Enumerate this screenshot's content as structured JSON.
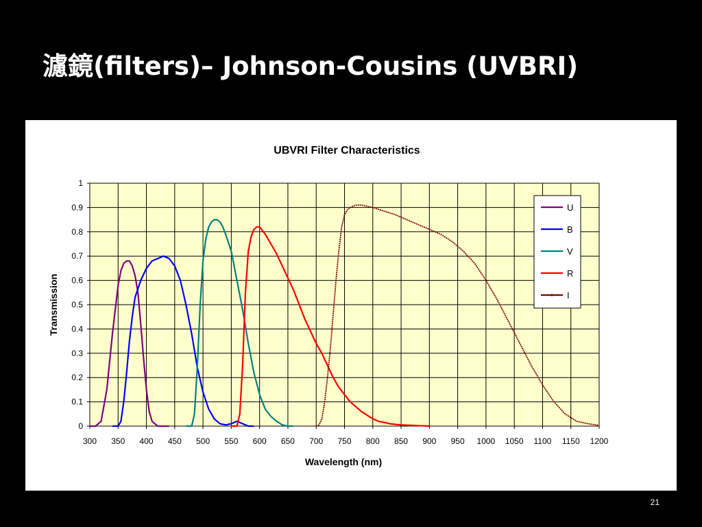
{
  "slide": {
    "title": "濾鏡(filters)–  Johnson-Cousins (UVBRI)",
    "page_number": "21"
  },
  "colors": {
    "plot_background": "#ffffcc",
    "grid": "#000000",
    "U": "#800080",
    "B": "#0000ff",
    "V": "#008080",
    "R": "#ff0000",
    "I": "#800000"
  },
  "chart_data": {
    "type": "line",
    "title": "UBVRI Filter Characteristics",
    "xlabel": "Wavelength (nm)",
    "ylabel": "Transmission",
    "xlim": [
      300,
      1200
    ],
    "ylim": [
      0,
      1
    ],
    "xticks": [
      300,
      350,
      400,
      450,
      500,
      550,
      600,
      650,
      700,
      750,
      800,
      850,
      900,
      950,
      1000,
      1050,
      1100,
      1150,
      1200
    ],
    "yticks": [
      0,
      0.1,
      0.2,
      0.3,
      0.4,
      0.5,
      0.6,
      0.7,
      0.8,
      0.9,
      1
    ],
    "grid": true,
    "legend_position": "top-right",
    "series": [
      {
        "name": "U",
        "color": "#800080",
        "x": [
          300,
          310,
          320,
          330,
          340,
          350,
          355,
          360,
          365,
          370,
          375,
          380,
          385,
          390,
          395,
          400,
          405,
          410,
          415,
          420,
          430,
          440
        ],
        "y": [
          0,
          0,
          0.02,
          0.15,
          0.38,
          0.58,
          0.64,
          0.67,
          0.68,
          0.68,
          0.66,
          0.62,
          0.55,
          0.42,
          0.28,
          0.15,
          0.06,
          0.02,
          0.01,
          0,
          0,
          0
        ]
      },
      {
        "name": "B",
        "color": "#0000ff",
        "x": [
          340,
          350,
          355,
          360,
          365,
          370,
          375,
          380,
          390,
          400,
          410,
          420,
          430,
          440,
          450,
          460,
          470,
          480,
          490,
          500,
          510,
          520,
          530,
          540,
          550,
          560,
          570,
          580,
          590
        ],
        "y": [
          0,
          0,
          0.02,
          0.1,
          0.22,
          0.35,
          0.45,
          0.53,
          0.6,
          0.65,
          0.68,
          0.69,
          0.7,
          0.69,
          0.66,
          0.6,
          0.5,
          0.38,
          0.24,
          0.14,
          0.07,
          0.03,
          0.01,
          0.005,
          0.01,
          0.02,
          0.01,
          0,
          0
        ]
      },
      {
        "name": "V",
        "color": "#008080",
        "x": [
          470,
          480,
          485,
          490,
          495,
          500,
          505,
          510,
          515,
          520,
          525,
          530,
          535,
          540,
          550,
          560,
          570,
          580,
          590,
          600,
          610,
          620,
          630,
          640,
          650,
          660
        ],
        "y": [
          0,
          0,
          0.05,
          0.25,
          0.5,
          0.68,
          0.77,
          0.82,
          0.84,
          0.85,
          0.85,
          0.84,
          0.82,
          0.79,
          0.72,
          0.6,
          0.48,
          0.34,
          0.22,
          0.13,
          0.07,
          0.04,
          0.02,
          0.005,
          0,
          0
        ]
      },
      {
        "name": "R",
        "color": "#ff0000",
        "x": [
          550,
          560,
          565,
          570,
          575,
          580,
          585,
          590,
          595,
          600,
          610,
          620,
          630,
          640,
          650,
          660,
          670,
          680,
          690,
          700,
          710,
          720,
          730,
          740,
          750,
          760,
          770,
          780,
          790,
          800,
          810,
          820,
          830,
          840,
          850,
          860,
          870,
          880,
          890,
          900
        ],
        "y": [
          0,
          0,
          0.05,
          0.25,
          0.55,
          0.72,
          0.78,
          0.81,
          0.82,
          0.82,
          0.79,
          0.75,
          0.71,
          0.66,
          0.61,
          0.56,
          0.5,
          0.44,
          0.39,
          0.34,
          0.3,
          0.25,
          0.2,
          0.16,
          0.13,
          0.1,
          0.08,
          0.06,
          0.045,
          0.03,
          0.02,
          0.015,
          0.01,
          0.007,
          0.005,
          0.004,
          0.003,
          0.002,
          0.001,
          0
        ]
      },
      {
        "name": "I",
        "color": "#800000",
        "x": [
          700,
          705,
          710,
          715,
          720,
          725,
          730,
          735,
          740,
          745,
          750,
          755,
          760,
          770,
          780,
          790,
          800,
          820,
          840,
          860,
          880,
          900,
          920,
          940,
          960,
          980,
          1000,
          1020,
          1040,
          1060,
          1080,
          1100,
          1120,
          1140,
          1160,
          1180,
          1200
        ],
        "y": [
          0,
          0.005,
          0.03,
          0.1,
          0.2,
          0.32,
          0.46,
          0.6,
          0.72,
          0.82,
          0.87,
          0.89,
          0.9,
          0.91,
          0.91,
          0.905,
          0.9,
          0.885,
          0.87,
          0.85,
          0.83,
          0.81,
          0.79,
          0.76,
          0.72,
          0.67,
          0.6,
          0.52,
          0.43,
          0.34,
          0.25,
          0.17,
          0.1,
          0.05,
          0.02,
          0.01,
          0.003
        ]
      }
    ]
  }
}
